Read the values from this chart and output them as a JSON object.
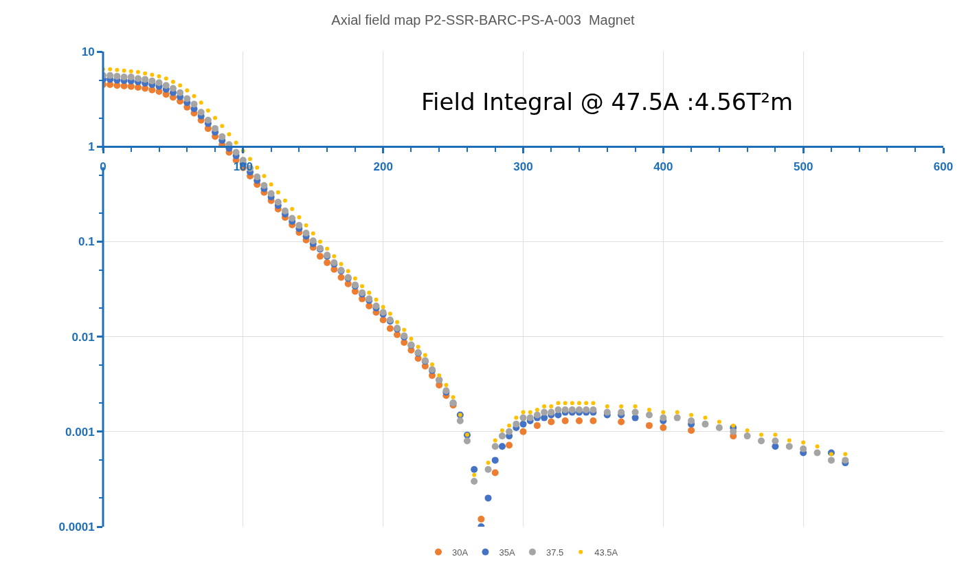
{
  "chart_data": {
    "type": "scatter",
    "title": "Axial field map P2-SSR-BARC-PS-A-003  Magnet",
    "annotations": [
      "Field Integral @ 47.5A :4.56T²m"
    ],
    "log": "y",
    "grid": true,
    "legend": "bottom",
    "marker": "circle",
    "xlim": [
      0,
      600
    ],
    "xticks": [
      0,
      100,
      200,
      300,
      400,
      500,
      600
    ],
    "ylim": [
      0.0001,
      10
    ],
    "yticks": [
      0.0001,
      0.001,
      0.01,
      0.1,
      1,
      10
    ],
    "series": [
      {
        "name": "30A",
        "color": "#ed7d31",
        "x": [
          0,
          5,
          10,
          15,
          20,
          25,
          30,
          35,
          40,
          45,
          50,
          55,
          60,
          65,
          70,
          75,
          80,
          85,
          90,
          95,
          100,
          105,
          110,
          115,
          120,
          125,
          130,
          135,
          140,
          145,
          150,
          155,
          160,
          165,
          170,
          175,
          180,
          185,
          190,
          195,
          200,
          205,
          210,
          215,
          220,
          225,
          230,
          235,
          240,
          245,
          250,
          270,
          280,
          290,
          300,
          310,
          320,
          330,
          340,
          350,
          370,
          390,
          400,
          420,
          450
        ],
        "values": [
          4.5,
          4.5,
          4.4,
          4.35,
          4.3,
          4.2,
          4.1,
          3.95,
          3.8,
          3.55,
          3.3,
          3.0,
          2.6,
          2.25,
          1.9,
          1.55,
          1.28,
          1.05,
          0.87,
          0.72,
          0.6,
          0.49,
          0.4,
          0.33,
          0.27,
          0.22,
          0.18,
          0.15,
          0.125,
          0.104,
          0.087,
          0.07,
          0.06,
          0.051,
          0.042,
          0.036,
          0.03,
          0.025,
          0.021,
          0.018,
          0.015,
          0.0122,
          0.0105,
          0.0087,
          0.0072,
          0.0059,
          0.0049,
          0.0039,
          0.0031,
          0.0024,
          0.0019,
          0.00012,
          0.00037,
          0.00072,
          0.001,
          0.00116,
          0.00127,
          0.0013,
          0.0013,
          0.0013,
          0.00127,
          0.00116,
          0.0011,
          0.00103,
          0.0009
        ]
      },
      {
        "name": "35A",
        "color": "#4472c4",
        "x": [
          0,
          5,
          10,
          15,
          20,
          25,
          30,
          35,
          40,
          45,
          50,
          55,
          60,
          65,
          70,
          75,
          80,
          85,
          90,
          95,
          100,
          105,
          110,
          115,
          120,
          125,
          130,
          135,
          140,
          145,
          150,
          155,
          160,
          165,
          170,
          175,
          180,
          185,
          190,
          195,
          200,
          205,
          210,
          215,
          220,
          225,
          230,
          235,
          240,
          245,
          250,
          255,
          260,
          265,
          270,
          275,
          280,
          285,
          290,
          295,
          300,
          305,
          310,
          315,
          320,
          325,
          330,
          335,
          340,
          345,
          350,
          360,
          370,
          380,
          400,
          420,
          450,
          480,
          500,
          520,
          530
        ],
        "values": [
          5.1,
          5.1,
          5.0,
          4.95,
          4.9,
          4.8,
          4.65,
          4.5,
          4.3,
          4.0,
          3.7,
          3.35,
          2.9,
          2.5,
          2.1,
          1.75,
          1.42,
          1.16,
          0.96,
          0.8,
          0.66,
          0.54,
          0.44,
          0.36,
          0.295,
          0.24,
          0.195,
          0.163,
          0.137,
          0.114,
          0.095,
          0.083,
          0.07,
          0.058,
          0.049,
          0.041,
          0.034,
          0.028,
          0.024,
          0.02,
          0.0172,
          0.0145,
          0.012,
          0.0099,
          0.0081,
          0.0067,
          0.0055,
          0.0044,
          0.0035,
          0.0026,
          0.002,
          0.0015,
          0.00092,
          0.0004,
          0.0001,
          0.0002,
          0.0005,
          0.0007,
          0.0009,
          0.0011,
          0.0012,
          0.0013,
          0.0014,
          0.0014,
          0.0015,
          0.0015,
          0.0016,
          0.0016,
          0.0016,
          0.0016,
          0.0016,
          0.0015,
          0.0015,
          0.0014,
          0.0013,
          0.0012,
          0.0011,
          0.0007,
          0.0006,
          0.0006,
          0.00047
        ]
      },
      {
        "name": "37.5",
        "color": "#a5a5a5",
        "x": [
          0,
          5,
          10,
          15,
          20,
          25,
          30,
          35,
          40,
          45,
          50,
          55,
          60,
          65,
          70,
          75,
          80,
          85,
          90,
          95,
          100,
          105,
          110,
          115,
          120,
          125,
          130,
          135,
          140,
          145,
          150,
          155,
          160,
          165,
          170,
          175,
          180,
          185,
          190,
          195,
          200,
          205,
          210,
          215,
          220,
          225,
          230,
          235,
          240,
          245,
          250,
          255,
          260,
          265,
          275,
          280,
          285,
          290,
          295,
          300,
          305,
          310,
          315,
          320,
          325,
          330,
          335,
          340,
          345,
          350,
          360,
          370,
          380,
          390,
          400,
          410,
          420,
          430,
          440,
          450,
          460,
          470,
          480,
          490,
          500,
          510,
          520,
          530
        ],
        "values": [
          5.6,
          5.6,
          5.5,
          5.4,
          5.4,
          5.2,
          5.1,
          4.9,
          4.7,
          4.4,
          4.1,
          3.7,
          3.2,
          2.8,
          2.3,
          1.9,
          1.55,
          1.27,
          1.05,
          0.87,
          0.72,
          0.59,
          0.48,
          0.39,
          0.32,
          0.26,
          0.21,
          0.176,
          0.148,
          0.123,
          0.102,
          0.085,
          0.072,
          0.06,
          0.05,
          0.042,
          0.035,
          0.029,
          0.025,
          0.021,
          0.018,
          0.015,
          0.0123,
          0.0102,
          0.0082,
          0.0068,
          0.0056,
          0.0045,
          0.0035,
          0.0027,
          0.002,
          0.0013,
          0.0008,
          0.0003,
          0.0004,
          0.0007,
          0.0009,
          0.001,
          0.0012,
          0.0014,
          0.0014,
          0.0015,
          0.0016,
          0.0016,
          0.0017,
          0.0017,
          0.0017,
          0.0017,
          0.0017,
          0.0017,
          0.0016,
          0.0016,
          0.0016,
          0.0015,
          0.0014,
          0.0014,
          0.0013,
          0.0012,
          0.0011,
          0.001,
          0.0009,
          0.0008,
          0.0008,
          0.0007,
          0.00066,
          0.0006,
          0.0005,
          0.0005
        ]
      },
      {
        "name": "43.5A",
        "color": "#ffc000",
        "x": [
          0,
          5,
          10,
          15,
          20,
          25,
          30,
          35,
          40,
          45,
          50,
          55,
          60,
          65,
          70,
          75,
          80,
          85,
          90,
          95,
          100,
          105,
          110,
          115,
          120,
          125,
          130,
          135,
          140,
          145,
          150,
          155,
          160,
          165,
          170,
          175,
          180,
          185,
          190,
          195,
          200,
          205,
          210,
          215,
          220,
          225,
          230,
          235,
          240,
          245,
          250,
          255,
          260,
          265,
          275,
          280,
          285,
          290,
          295,
          300,
          305,
          310,
          315,
          320,
          325,
          330,
          335,
          340,
          345,
          350,
          360,
          370,
          380,
          390,
          400,
          410,
          420,
          430,
          440,
          450,
          460,
          470,
          480,
          490,
          500,
          510,
          520,
          530
        ],
        "values": [
          6.5,
          6.5,
          6.4,
          6.3,
          6.2,
          6.1,
          5.9,
          5.7,
          5.5,
          5.2,
          4.8,
          4.4,
          3.9,
          3.4,
          2.9,
          2.4,
          2.0,
          1.65,
          1.35,
          1.1,
          0.9,
          0.74,
          0.6,
          0.49,
          0.4,
          0.33,
          0.27,
          0.22,
          0.18,
          0.148,
          0.122,
          0.1,
          0.084,
          0.07,
          0.058,
          0.049,
          0.041,
          0.034,
          0.029,
          0.0245,
          0.0205,
          0.0174,
          0.0142,
          0.0118,
          0.0095,
          0.0078,
          0.0064,
          0.0051,
          0.0039,
          0.0031,
          0.0023,
          0.0015,
          0.00093,
          0.00035,
          0.00047,
          0.00081,
          0.00103,
          0.00116,
          0.0014,
          0.0016,
          0.0016,
          0.0017,
          0.00185,
          0.00185,
          0.002,
          0.002,
          0.002,
          0.002,
          0.002,
          0.002,
          0.00185,
          0.00185,
          0.00185,
          0.0017,
          0.0016,
          0.0016,
          0.0015,
          0.0014,
          0.00127,
          0.00116,
          0.00103,
          0.00093,
          0.00093,
          0.00081,
          0.00077,
          0.0007,
          0.00058,
          0.00058
        ]
      }
    ]
  }
}
